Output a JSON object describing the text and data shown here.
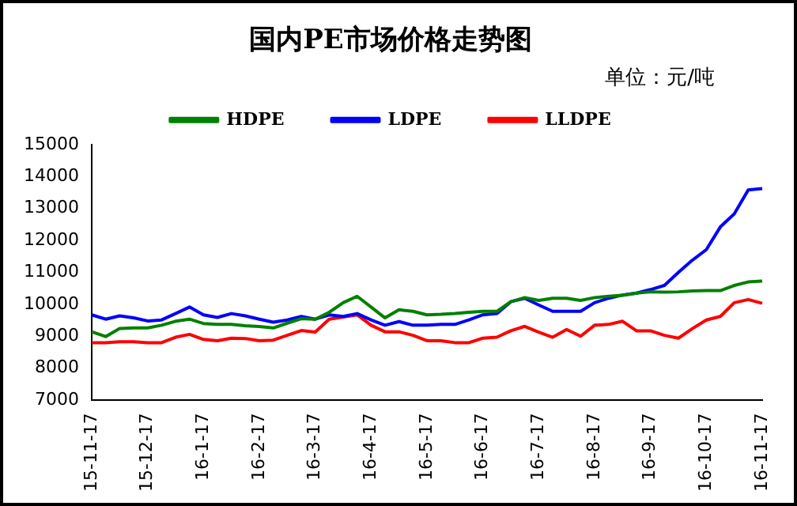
{
  "chart_data": {
    "type": "line",
    "title": "国内PE市场价格走势图",
    "annotations": [
      "单位：元/吨"
    ],
    "categories": [
      "15-11-17",
      null,
      null,
      null,
      "15-12-17",
      null,
      null,
      null,
      "16-1-17",
      null,
      null,
      null,
      "16-2-17",
      null,
      null,
      null,
      "16-3-17",
      null,
      null,
      null,
      "16-4-17",
      null,
      null,
      null,
      "16-5-17",
      null,
      null,
      null,
      "16-6-17",
      null,
      null,
      null,
      "16-7-17",
      null,
      null,
      null,
      "16-8-17",
      null,
      null,
      null,
      "16-9-17",
      null,
      null,
      null,
      "16-10-17",
      null,
      null,
      null,
      "16-11-17"
    ],
    "series": [
      {
        "name": "HDPE",
        "color": "#008000",
        "values": [
          9140,
          8990,
          9240,
          9260,
          9260,
          9345,
          9470,
          9535,
          9400,
          9370,
          9370,
          9330,
          9305,
          9260,
          9410,
          9550,
          9535,
          9750,
          10050,
          10250,
          9915,
          9575,
          9830,
          9780,
          9670,
          9685,
          9710,
          9750,
          9780,
          9780,
          10080,
          10210,
          10120,
          10190,
          10190,
          10120,
          10210,
          10250,
          10280,
          10350,
          10390,
          10380,
          10390,
          10420,
          10430,
          10430,
          10590,
          10700,
          10730
        ]
      },
      {
        "name": "LDPE",
        "color": "#0000ff",
        "values": [
          9670,
          9535,
          9640,
          9575,
          9480,
          9510,
          9710,
          9915,
          9670,
          9590,
          9710,
          9640,
          9535,
          9440,
          9510,
          9620,
          9535,
          9670,
          9620,
          9710,
          9510,
          9345,
          9460,
          9345,
          9345,
          9370,
          9370,
          9510,
          9670,
          9710,
          10080,
          10190,
          9980,
          9780,
          9780,
          9780,
          10050,
          10190,
          10290,
          10350,
          10460,
          10590,
          11000,
          11380,
          11710,
          12420,
          12830,
          13580,
          13620
        ]
      },
      {
        "name": "LLDPE",
        "color": "#ff0000",
        "values": [
          8800,
          8800,
          8830,
          8830,
          8800,
          8800,
          8970,
          9060,
          8900,
          8860,
          8940,
          8930,
          8860,
          8880,
          9030,
          9180,
          9130,
          9535,
          9600,
          9670,
          9345,
          9140,
          9140,
          9030,
          8860,
          8860,
          8800,
          8800,
          8940,
          8970,
          9170,
          9310,
          9130,
          8970,
          9210,
          9000,
          9345,
          9370,
          9470,
          9170,
          9170,
          9030,
          8940,
          9240,
          9510,
          9620,
          10050,
          10150,
          10030
        ]
      }
    ],
    "ylim": [
      7000,
      15000
    ],
    "yticks": [
      7000,
      8000,
      9000,
      10000,
      11000,
      12000,
      13000,
      14000,
      15000
    ],
    "grid": false,
    "legend": "top",
    "marker": "none",
    "line_style": "solid"
  }
}
